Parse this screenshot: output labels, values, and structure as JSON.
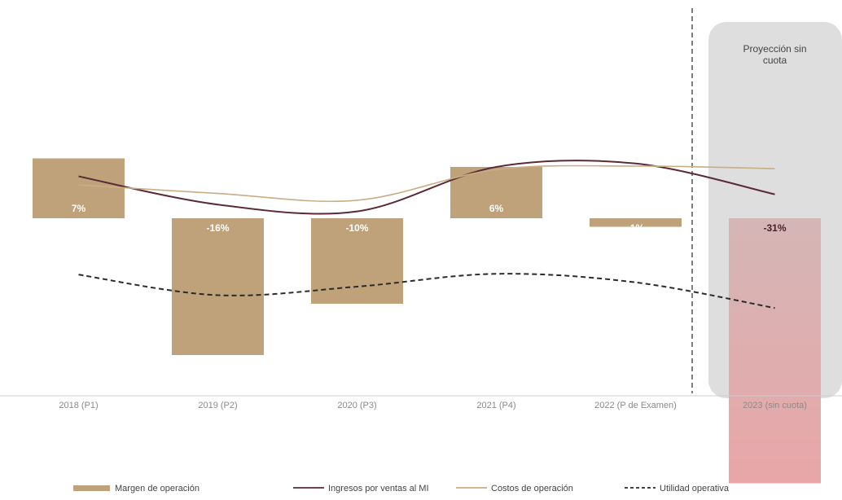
{
  "chart_data": {
    "type": "bar",
    "categories": [
      "2018 (P1)",
      "2019 (P2)",
      "2020 (P3)",
      "2021 (P4)",
      "2022 (P de Examen)",
      "2023 (sin cuota)"
    ],
    "bar_series": {
      "name": "Margen de operación",
      "values": [
        7,
        -16,
        -10,
        6,
        -1,
        -31
      ],
      "labels": [
        "7%",
        "-16%",
        "-10%",
        "6%",
        "-1%",
        "-31%"
      ]
    },
    "line_series": [
      {
        "name": "Ingresos por ventas al MI",
        "style": "solid",
        "color": "#5a2a36",
        "values": [
          4.9,
          1.6,
          0.8,
          6.0,
          6.4,
          2.8
        ]
      },
      {
        "name": "Costos de operación",
        "style": "solid",
        "color": "#c8ad85",
        "values": [
          3.9,
          2.9,
          2.1,
          5.7,
          6.1,
          5.8
        ]
      },
      {
        "name": "Utilidad operativa",
        "style": "dashed",
        "color": "#2b2b2b",
        "values": [
          -6.6,
          -9.0,
          -8.0,
          -6.5,
          -7.5,
          -10.5
        ]
      }
    ],
    "ylim": [
      -11,
      10
    ],
    "projection_label": "Proyección sin cuota",
    "legend_position": "bottom",
    "colors": {
      "bar": "#bfa27a",
      "bar_projection_top": "#d4b6b6",
      "bar_projection_bottom": "#e8a6a8",
      "projection_band": "#dedede",
      "bar_label": "#ffffff",
      "projection_bar_label": "#4a1f2a",
      "axis": "#cfcfcf",
      "tick_label": "#8a8a8a"
    }
  }
}
